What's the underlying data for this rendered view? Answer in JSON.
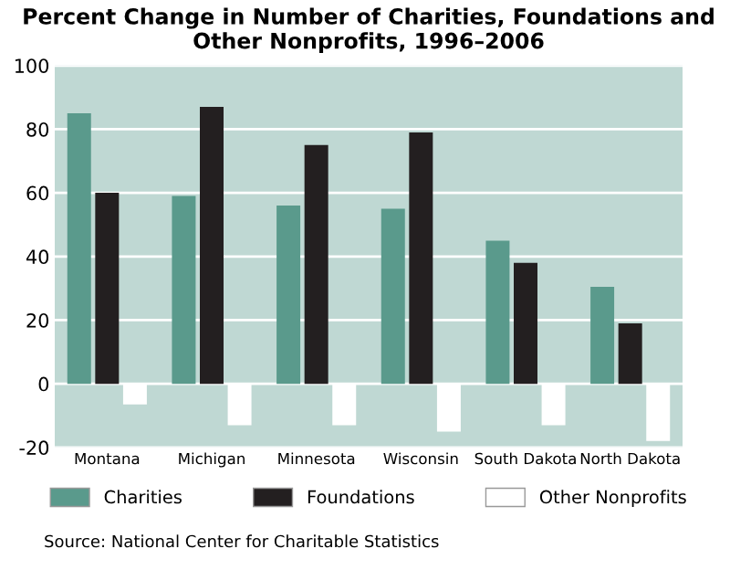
{
  "chart_data": {
    "type": "bar",
    "title": "Percent Change in Number of Charities, Foundations and Other Nonprofits, 1996–2006",
    "categories": [
      "Montana",
      "Michigan",
      "Minnesota",
      "Wisconsin",
      "South Dakota",
      "North Dakota"
    ],
    "series": [
      {
        "name": "Charities",
        "color": "#5a9a8c",
        "values": [
          85,
          59,
          56,
          55,
          45,
          30.5
        ]
      },
      {
        "name": "Foundations",
        "color": "#231f20",
        "values": [
          60,
          87,
          75,
          79,
          38,
          19
        ]
      },
      {
        "name": "Other Nonprofits",
        "color": "#ffffff",
        "values": [
          -6.5,
          -13,
          -13,
          -15,
          -13,
          -18
        ]
      }
    ],
    "ylim": [
      -20,
      100
    ],
    "yticks": [
      -20,
      0,
      20,
      40,
      60,
      80,
      100
    ],
    "grid": "y",
    "legend": "bottom",
    "annotations": [
      "Source: National Center for Charitable Statistics"
    ]
  }
}
